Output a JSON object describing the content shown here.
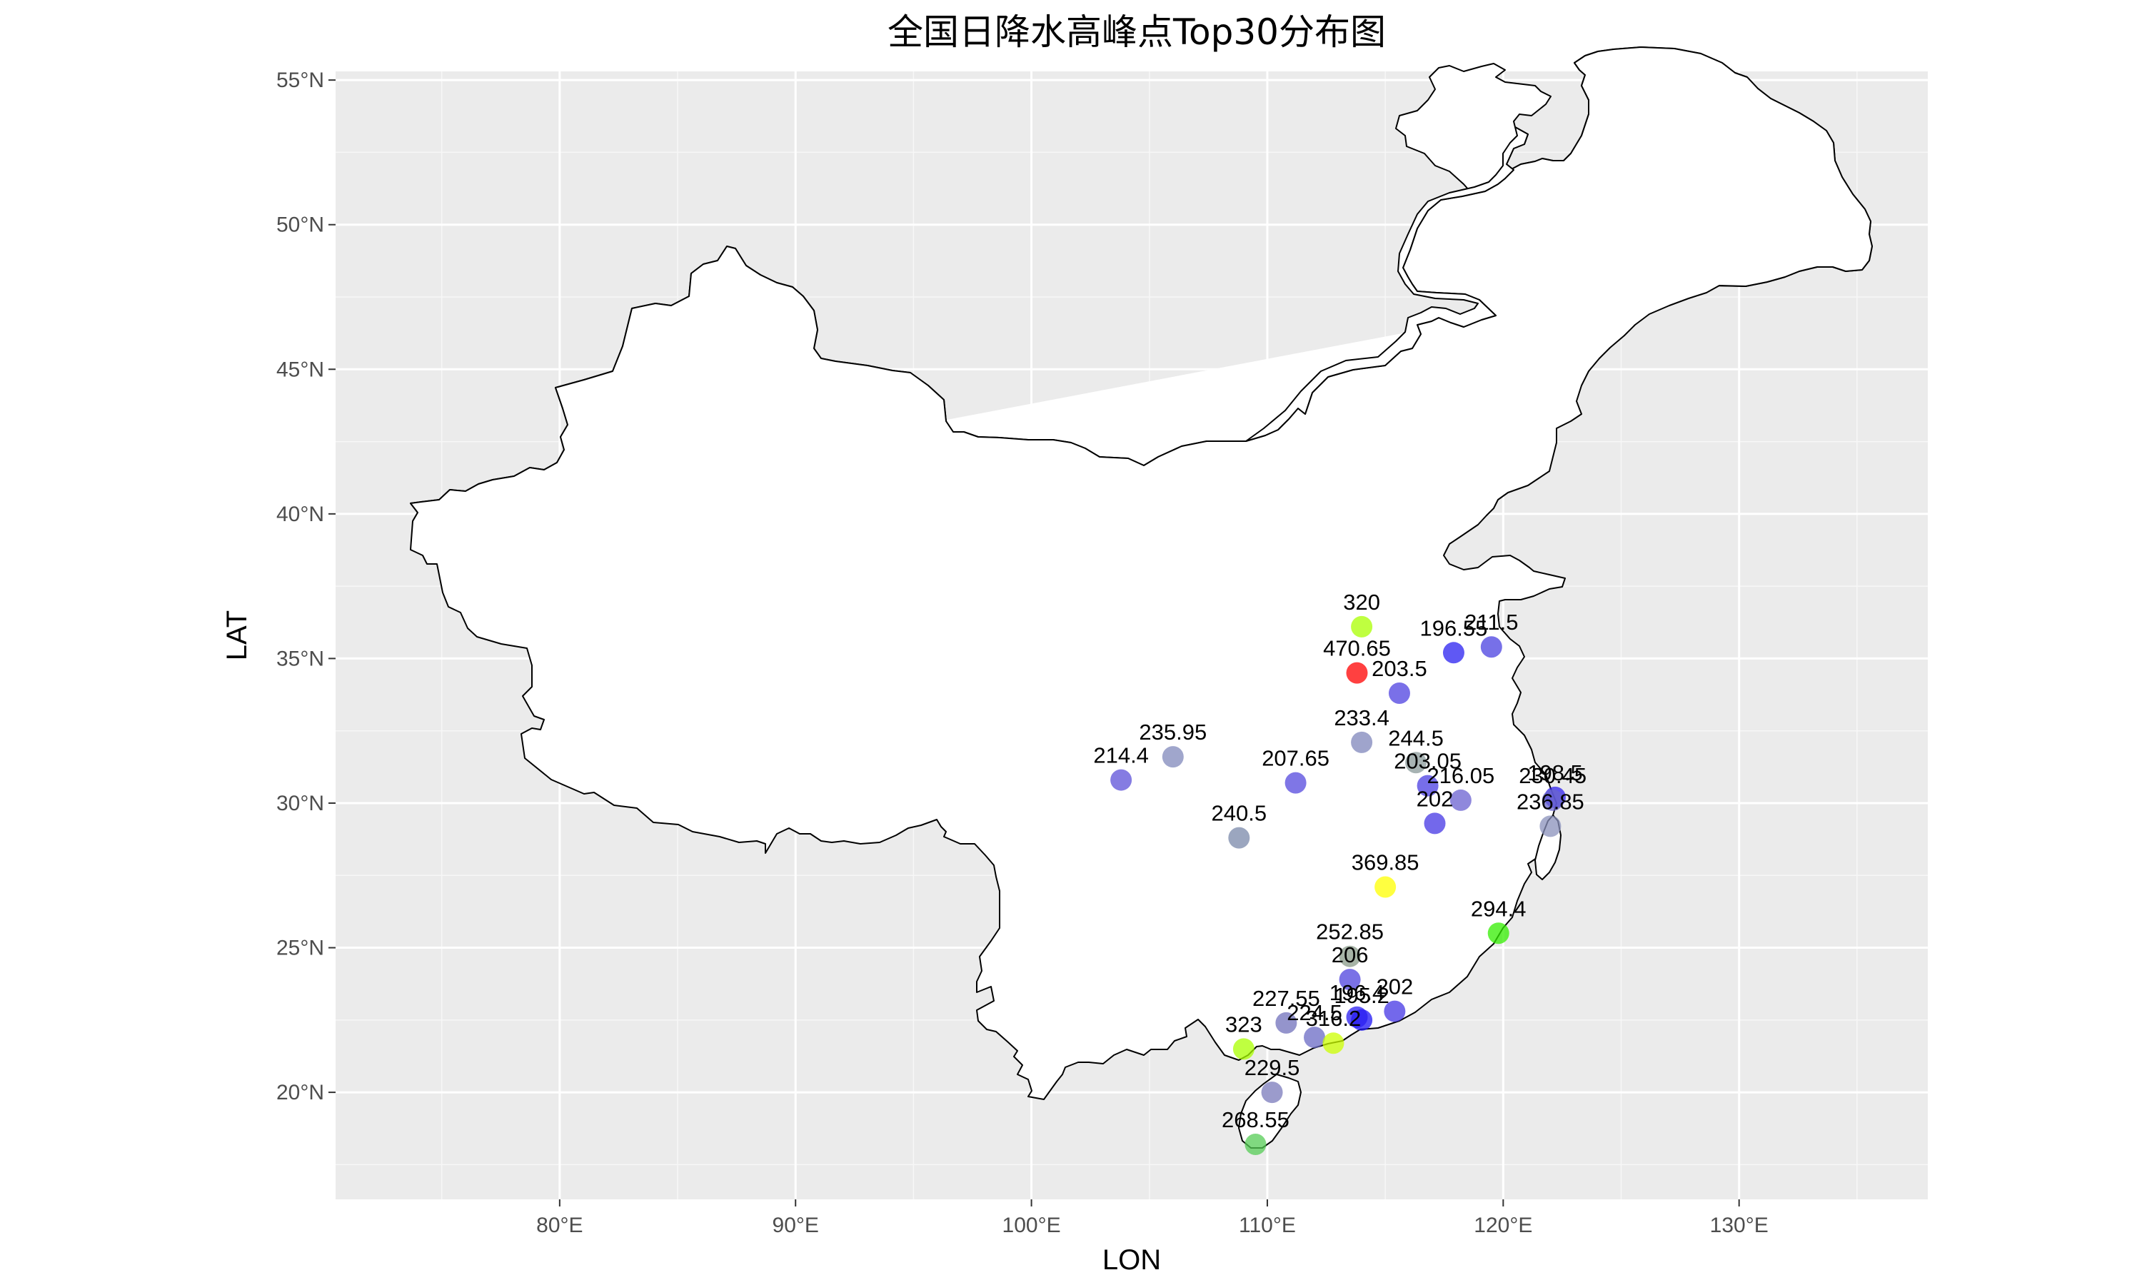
{
  "chart_data": {
    "type": "scatter",
    "title": "全国日降水高峰点Top30分布图",
    "xlabel": "LON",
    "ylabel": "LAT",
    "xlim": [
      70.5,
      138
    ],
    "ylim": [
      16.3,
      55.3
    ],
    "x_ticks": [
      {
        "value": 80,
        "label": "80°E"
      },
      {
        "value": 90,
        "label": "90°E"
      },
      {
        "value": 100,
        "label": "100°E"
      },
      {
        "value": 110,
        "label": "110°E"
      },
      {
        "value": 120,
        "label": "120°E"
      },
      {
        "value": 130,
        "label": "130°E"
      }
    ],
    "y_ticks": [
      {
        "value": 20,
        "label": "20°N"
      },
      {
        "value": 25,
        "label": "25°N"
      },
      {
        "value": 30,
        "label": "30°N"
      },
      {
        "value": 35,
        "label": "35°N"
      },
      {
        "value": 40,
        "label": "40°N"
      },
      {
        "value": 45,
        "label": "45°N"
      },
      {
        "value": 50,
        "label": "50°N"
      },
      {
        "value": 55,
        "label": "55°N"
      }
    ],
    "grid": true,
    "panel_background": "#ebebeb",
    "land_fill": "#ffffff",
    "border_color": "#000000",
    "points": [
      {
        "lon": 113.8,
        "lat": 34.5,
        "value": 470.65,
        "label": "470.65",
        "color": "#ff0000"
      },
      {
        "lon": 115.0,
        "lat": 27.1,
        "value": 369.85,
        "label": "369.85",
        "color": "#ffff00"
      },
      {
        "lon": 109.0,
        "lat": 21.5,
        "value": 323,
        "label": "323",
        "color": "#aaff00"
      },
      {
        "lon": 114.0,
        "lat": 36.1,
        "value": 320,
        "label": "320",
        "color": "#aaff00"
      },
      {
        "lon": 112.8,
        "lat": 21.7,
        "value": 316.2,
        "label": "316.2",
        "color": "#ccff00"
      },
      {
        "lon": 119.8,
        "lat": 25.5,
        "value": 294.4,
        "label": "294.4",
        "color": "#33ee00"
      },
      {
        "lon": 109.5,
        "lat": 18.2,
        "value": 268.55,
        "label": "268.55",
        "color": "#55cc55"
      },
      {
        "lon": 113.5,
        "lat": 24.7,
        "value": 252.85,
        "label": "252.85",
        "color": "#889988"
      },
      {
        "lon": 116.3,
        "lat": 31.4,
        "value": 244.5,
        "label": "244.5",
        "color": "#8a9a9a"
      },
      {
        "lon": 108.8,
        "lat": 28.8,
        "value": 240.5,
        "label": "240.5",
        "color": "#7a88aa"
      },
      {
        "lon": 122.0,
        "lat": 29.2,
        "value": 236.85,
        "label": "236.85",
        "color": "#8a90bb"
      },
      {
        "lon": 106.0,
        "lat": 31.6,
        "value": 235.95,
        "label": "235.95",
        "color": "#8088bb"
      },
      {
        "lon": 114.0,
        "lat": 32.1,
        "value": 233.4,
        "label": "233.4",
        "color": "#7f86bb"
      },
      {
        "lon": 122.1,
        "lat": 30.1,
        "value": 230.45,
        "label": "230.45",
        "color": "#6a66cc"
      },
      {
        "lon": 110.2,
        "lat": 20.0,
        "value": 229.5,
        "label": "229.5",
        "color": "#7a7abb"
      },
      {
        "lon": 110.8,
        "lat": 22.4,
        "value": 227.55,
        "label": "227.55",
        "color": "#7070bb"
      },
      {
        "lon": 112.0,
        "lat": 21.9,
        "value": 224.5,
        "label": "224.5",
        "color": "#6a6ac4"
      },
      {
        "lon": 118.2,
        "lat": 30.1,
        "value": 216.05,
        "label": "216.05",
        "color": "#6a60d0"
      },
      {
        "lon": 103.8,
        "lat": 30.8,
        "value": 214.4,
        "label": "214.4",
        "color": "#5c50d8"
      },
      {
        "lon": 119.5,
        "lat": 35.4,
        "value": 211.5,
        "label": "211.5",
        "color": "#4a40e0"
      },
      {
        "lon": 111.2,
        "lat": 30.7,
        "value": 207.65,
        "label": "207.65",
        "color": "#5448dd"
      },
      {
        "lon": 113.5,
        "lat": 23.9,
        "value": 206,
        "label": "206",
        "color": "#4e42de"
      },
      {
        "lon": 115.6,
        "lat": 33.8,
        "value": 203.5,
        "label": "203.5",
        "color": "#4d40e0"
      },
      {
        "lon": 116.8,
        "lat": 30.6,
        "value": 203.05,
        "label": "203.05",
        "color": "#4a3ee2"
      },
      {
        "lon": 117.1,
        "lat": 29.3,
        "value": 202,
        "label": "202",
        "color": "#4436e4"
      },
      {
        "lon": 115.4,
        "lat": 22.8,
        "value": 202,
        "label": "202",
        "color": "#4436e4"
      },
      {
        "lon": 122.2,
        "lat": 30.2,
        "value": 198.5,
        "label": "198.5",
        "color": "#3022ee"
      },
      {
        "lon": 117.9,
        "lat": 35.2,
        "value": 196.55,
        "label": "196.55",
        "color": "#2a20f0"
      },
      {
        "lon": 113.8,
        "lat": 22.6,
        "value": 196.4,
        "label": "196.4",
        "color": "#2a1ef2"
      },
      {
        "lon": 114.0,
        "lat": 22.5,
        "value": 195.2,
        "label": "195.2",
        "color": "#1e14f4"
      }
    ]
  }
}
